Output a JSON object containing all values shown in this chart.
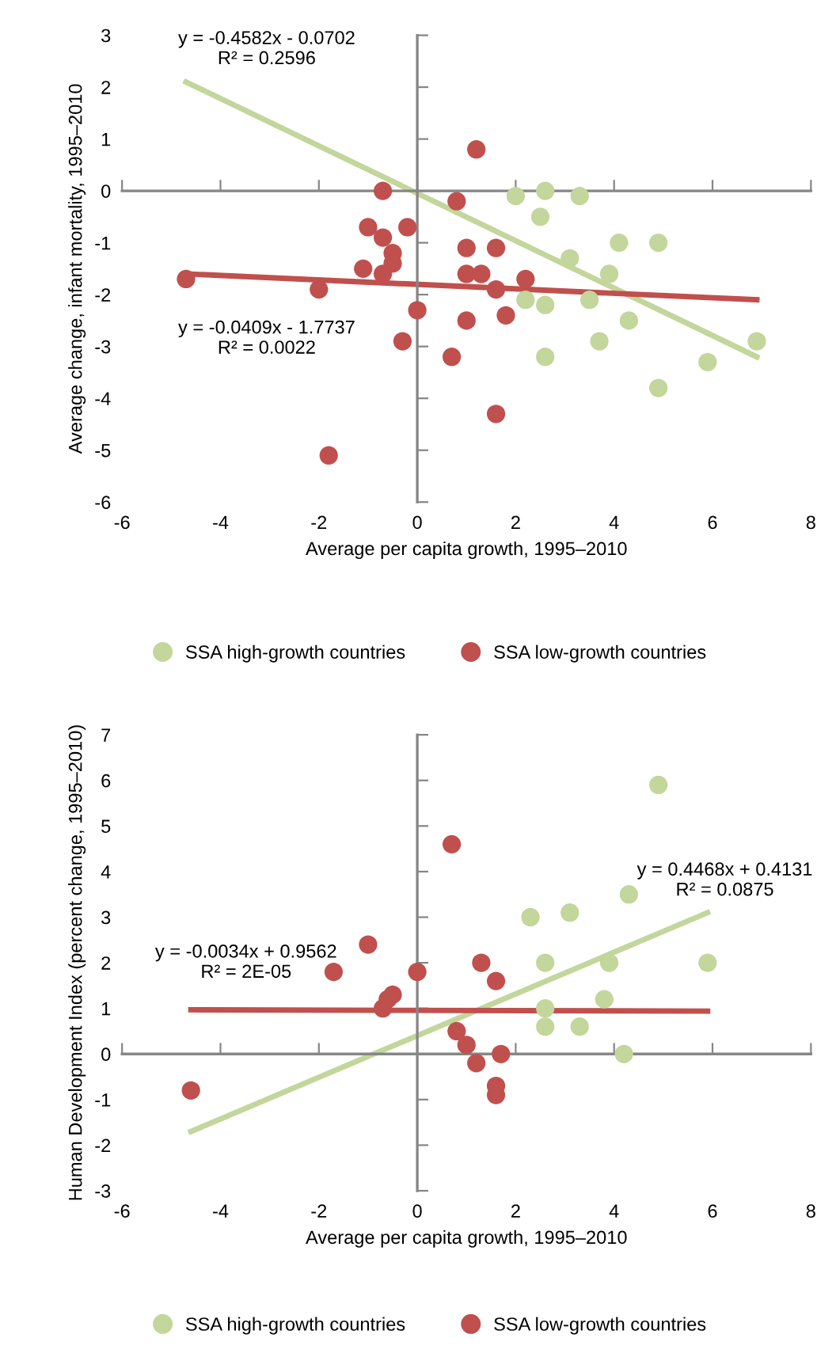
{
  "chart_data": [
    {
      "type": "scatter",
      "xlabel": "Average per capita growth, 1995–2010",
      "ylabel": "Average change, infant mortality, 1995–2010",
      "xlim": [
        -6,
        8
      ],
      "ylim": [
        -6,
        3
      ],
      "xticks": [
        -6,
        -4,
        -2,
        0,
        2,
        4,
        6,
        8
      ],
      "yticks": [
        -6,
        -5,
        -4,
        -3,
        -2,
        -1,
        0,
        1,
        2,
        3
      ],
      "legend": "bottom",
      "annotations": [
        "y = -0.4582x - 0.0702\nR² = 0.2596",
        "y = -0.0409x - 1.7737\nR² = 0.0022"
      ],
      "series": [
        {
          "name": "SSA high-growth countries",
          "marker": "circle",
          "color": "#c3d69b",
          "x": [
            2.0,
            2.6,
            3.3,
            2.5,
            4.1,
            4.9,
            3.1,
            3.9,
            2.2,
            2.6,
            3.5,
            4.3,
            3.7,
            2.6,
            6.9,
            5.9,
            4.9
          ],
          "values": [
            -0.1,
            0.0,
            -0.1,
            -0.5,
            -1.0,
            -1.0,
            -1.3,
            -1.6,
            -2.1,
            -2.2,
            -2.1,
            -2.5,
            -2.9,
            -3.2,
            -2.9,
            -3.3,
            -3.8
          ]
        },
        {
          "name": "SSA low-growth countries",
          "marker": "circle",
          "color": "#c0504d",
          "x": [
            1.2,
            -0.7,
            0.8,
            -1.0,
            -0.2,
            -0.7,
            -0.5,
            1.0,
            1.6,
            -0.5,
            -1.1,
            -0.7,
            1.0,
            1.3,
            2.2,
            -4.7,
            -2.0,
            1.6,
            0.0,
            1.0,
            1.8,
            -0.3,
            0.7,
            1.6,
            -1.8
          ],
          "values": [
            0.8,
            0.0,
            -0.2,
            -0.7,
            -0.7,
            -0.9,
            -1.2,
            -1.1,
            -1.1,
            -1.4,
            -1.5,
            -1.6,
            -1.6,
            -1.6,
            -1.7,
            -1.7,
            -1.9,
            -1.9,
            -2.3,
            -2.5,
            -2.4,
            -2.9,
            -3.2,
            -4.3,
            -5.1
          ]
        },
        {
          "type": "line",
          "color": "#c3d69b",
          "x": [
            -4.7,
            6.9
          ],
          "values": [
            2.1,
            -3.2
          ]
        },
        {
          "type": "line",
          "color": "#c0504d",
          "x": [
            -4.7,
            6.9
          ],
          "values": [
            -1.6,
            -2.1
          ]
        }
      ]
    },
    {
      "type": "scatter",
      "xlabel": "Average per capita growth, 1995–2010",
      "ylabel": "Human Development Index (percent change, 1995–2010)",
      "xlim": [
        -6,
        8
      ],
      "ylim": [
        -3,
        7
      ],
      "xticks": [
        -6,
        -4,
        -2,
        0,
        2,
        4,
        6,
        8
      ],
      "yticks": [
        -3,
        -2,
        -1,
        0,
        1,
        2,
        3,
        4,
        5,
        6,
        7
      ],
      "legend": "bottom",
      "annotations": [
        "y = 0.4468x + 0.4131\nR² = 0.0875",
        "y = -0.0034x + 0.9562\nR² = 2E-05"
      ],
      "series": [
        {
          "name": "SSA high-growth countries",
          "marker": "circle",
          "color": "#c3d69b",
          "x": [
            4.9,
            4.3,
            2.3,
            3.1,
            2.6,
            3.9,
            5.9,
            2.6,
            3.8,
            2.6,
            3.3,
            4.2
          ],
          "values": [
            5.9,
            3.5,
            3.0,
            3.1,
            2.0,
            2.0,
            2.0,
            1.0,
            1.2,
            0.6,
            0.6,
            0.0
          ]
        },
        {
          "name": "SSA low-growth countries",
          "marker": "circle",
          "color": "#c0504d",
          "x": [
            0.7,
            -1.0,
            -1.7,
            0.0,
            1.3,
            1.6,
            -0.5,
            -0.6,
            -0.7,
            0.8,
            1.0,
            1.2,
            1.7,
            1.6,
            1.6,
            -4.6
          ],
          "values": [
            4.6,
            2.4,
            1.8,
            1.8,
            2.0,
            1.6,
            1.3,
            1.2,
            1.0,
            0.5,
            0.2,
            -0.2,
            0.0,
            -0.7,
            -0.9,
            -0.8
          ]
        },
        {
          "type": "line",
          "color": "#c3d69b",
          "x": [
            -4.6,
            5.9
          ],
          "values": [
            -1.7,
            3.1
          ]
        },
        {
          "type": "line",
          "color": "#c0504d",
          "x": [
            -4.6,
            5.9
          ],
          "values": [
            0.97,
            0.94
          ]
        }
      ]
    }
  ]
}
